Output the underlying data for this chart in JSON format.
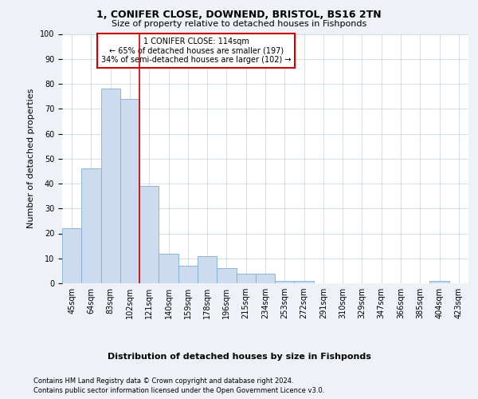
{
  "title": "1, CONIFER CLOSE, DOWNEND, BRISTOL, BS16 2TN",
  "subtitle": "Size of property relative to detached houses in Fishponds",
  "xlabel_bottom": "Distribution of detached houses by size in Fishponds",
  "ylabel": "Number of detached properties",
  "bin_labels": [
    "45sqm",
    "64sqm",
    "83sqm",
    "102sqm",
    "121sqm",
    "140sqm",
    "159sqm",
    "178sqm",
    "196sqm",
    "215sqm",
    "234sqm",
    "253sqm",
    "272sqm",
    "291sqm",
    "310sqm",
    "329sqm",
    "347sqm",
    "366sqm",
    "385sqm",
    "404sqm",
    "423sqm"
  ],
  "bar_heights": [
    22,
    46,
    78,
    74,
    39,
    12,
    7,
    11,
    6,
    4,
    4,
    1,
    1,
    0,
    0,
    0,
    0,
    0,
    0,
    1,
    0
  ],
  "bar_color": "#ccdcee",
  "bar_edge_color": "#7bafd4",
  "ylim": [
    0,
    100
  ],
  "yticks": [
    0,
    10,
    20,
    30,
    40,
    50,
    60,
    70,
    80,
    90,
    100
  ],
  "vline_x": 3.5,
  "annotation_text": "1 CONIFER CLOSE: 114sqm\n← 65% of detached houses are smaller (197)\n34% of semi-detached houses are larger (102) →",
  "annotation_box_color": "#ffffff",
  "annotation_box_edge_color": "#cc0000",
  "vline_color": "#cc0000",
  "footer_line1": "Contains HM Land Registry data © Crown copyright and database right 2024.",
  "footer_line2": "Contains public sector information licensed under the Open Government Licence v3.0.",
  "bg_color": "#eef2f7",
  "plot_bg_color": "#ffffff",
  "title_fontsize": 9,
  "subtitle_fontsize": 8,
  "ylabel_fontsize": 8,
  "tick_fontsize": 7,
  "annotation_fontsize": 7,
  "footer_fontsize": 6
}
